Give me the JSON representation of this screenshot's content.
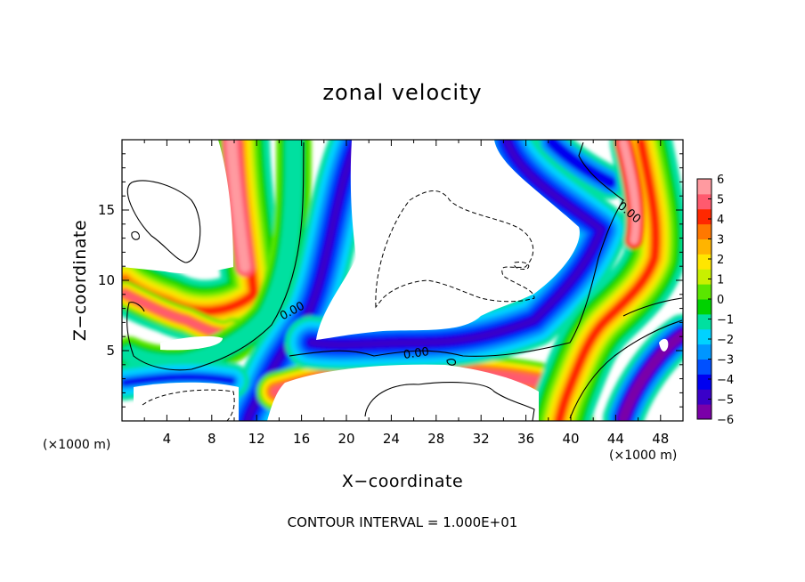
{
  "chart_data": {
    "type": "heatmap",
    "title": "zonal velocity",
    "xlabel": "X−coordinate",
    "ylabel": "Z−coordinate",
    "x_unit_left": "(×1000 m)",
    "x_unit_right": "(×1000 m)",
    "xlim": [
      0,
      50
    ],
    "ylim": [
      0,
      20
    ],
    "x_ticks": [
      "4",
      "8",
      "12",
      "16",
      "20",
      "24",
      "28",
      "32",
      "36",
      "40",
      "44",
      "48"
    ],
    "y_ticks": [
      "5",
      "10",
      "15"
    ],
    "colorbar": {
      "ticks": [
        "6",
        "5",
        "4",
        "3",
        "2",
        "1",
        "0",
        "−1",
        "−2",
        "−3",
        "−4",
        "−5",
        "−6"
      ],
      "range": [
        -6,
        6
      ],
      "colors": [
        "#7a00a8",
        "#3a00c8",
        "#0000f0",
        "#0050ff",
        "#0096ff",
        "#00d2ff",
        "#00e0a0",
        "#00d200",
        "#5ae600",
        "#c8f000",
        "#ffe600",
        "#ffb400",
        "#ff7800",
        "#ff2800",
        "#ff5a6e",
        "#ff9aa0"
      ]
    },
    "contour_labels": [
      "0.00",
      "0.00",
      "0.00"
    ],
    "footer": "CONTOUR INTERVAL = 1.000E+01",
    "grid": false,
    "legend": "none"
  }
}
